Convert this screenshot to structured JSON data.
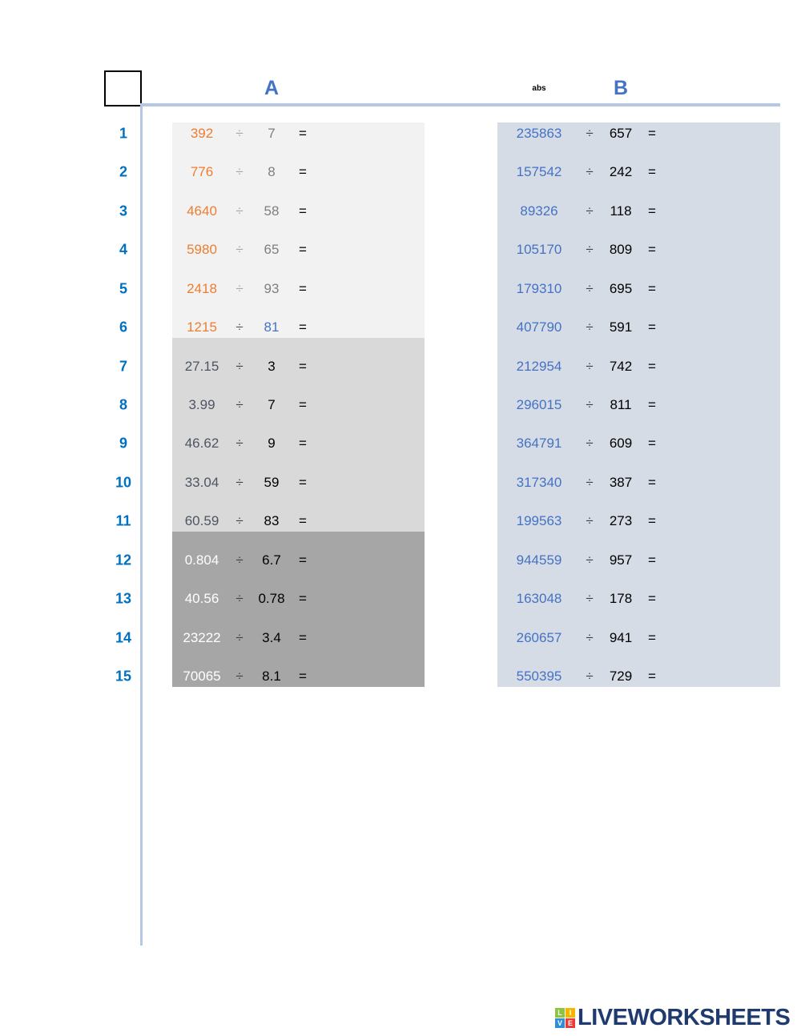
{
  "headers": {
    "a": "A",
    "b": "B",
    "abs": "abs"
  },
  "colors": {
    "axis": "#b4c7e7",
    "row_number": "#0070c0",
    "header": "#4472c4",
    "band_a_light": "#f2f2f2",
    "band_a_mid": "#d9d9d9",
    "band_a_dark": "#a6a6a6",
    "band_b": "#d6dce5"
  },
  "symbols": {
    "divide": "÷",
    "equals": "="
  },
  "rows": [
    {
      "n": "1",
      "a_dividend": "392",
      "a_divisor": "7",
      "a_dividend_color": "#ed7d31",
      "a_divisor_color": "#7f7f7f",
      "a_div_color": "#a6a6a6",
      "b_dividend": "235863",
      "b_divisor": "657"
    },
    {
      "n": "2",
      "a_dividend": "776",
      "a_divisor": "8",
      "a_dividend_color": "#ed7d31",
      "a_divisor_color": "#7f7f7f",
      "a_div_color": "#a6a6a6",
      "b_dividend": "157542",
      "b_divisor": "242"
    },
    {
      "n": "3",
      "a_dividend": "4640",
      "a_divisor": "58",
      "a_dividend_color": "#ed7d31",
      "a_divisor_color": "#7f7f7f",
      "a_div_color": "#a6a6a6",
      "b_dividend": "89326",
      "b_divisor": "118"
    },
    {
      "n": "4",
      "a_dividend": "5980",
      "a_divisor": "65",
      "a_dividend_color": "#ed7d31",
      "a_divisor_color": "#7f7f7f",
      "a_div_color": "#a6a6a6",
      "b_dividend": "105170",
      "b_divisor": "809"
    },
    {
      "n": "5",
      "a_dividend": "2418",
      "a_divisor": "93",
      "a_dividend_color": "#ed7d31",
      "a_divisor_color": "#7f7f7f",
      "a_div_color": "#a6a6a6",
      "b_dividend": "179310",
      "b_divisor": "695"
    },
    {
      "n": "6",
      "a_dividend": "1215",
      "a_divisor": "81",
      "a_dividend_color": "#ed7d31",
      "a_divisor_color": "#4472c4",
      "a_div_color": "#595959",
      "b_dividend": "407790",
      "b_divisor": "591"
    },
    {
      "n": "7",
      "a_dividend": "27.15",
      "a_divisor": "3",
      "a_dividend_color": "#4d5563",
      "a_divisor_color": "#000000",
      "a_div_color": "#404040",
      "b_dividend": "212954",
      "b_divisor": "742"
    },
    {
      "n": "8",
      "a_dividend": "3.99",
      "a_divisor": "7",
      "a_dividend_color": "#4d5563",
      "a_divisor_color": "#000000",
      "a_div_color": "#404040",
      "b_dividend": "296015",
      "b_divisor": "811"
    },
    {
      "n": "9",
      "a_dividend": "46.62",
      "a_divisor": "9",
      "a_dividend_color": "#4d5563",
      "a_divisor_color": "#000000",
      "a_div_color": "#404040",
      "b_dividend": "364791",
      "b_divisor": "609"
    },
    {
      "n": "10",
      "a_dividend": "33.04",
      "a_divisor": "59",
      "a_dividend_color": "#4d5563",
      "a_divisor_color": "#000000",
      "a_div_color": "#404040",
      "b_dividend": "317340",
      "b_divisor": "387"
    },
    {
      "n": "11",
      "a_dividend": "60.59",
      "a_divisor": "83",
      "a_dividend_color": "#4d5563",
      "a_divisor_color": "#000000",
      "a_div_color": "#404040",
      "b_dividend": "199563",
      "b_divisor": "273"
    },
    {
      "n": "12",
      "a_dividend": "0.804",
      "a_divisor": "6.7",
      "a_dividend_color": "#ffffff",
      "a_divisor_color": "#000000",
      "a_div_color": "#404040",
      "b_dividend": "944559",
      "b_divisor": "957"
    },
    {
      "n": "13",
      "a_dividend": "40.56",
      "a_divisor": "0.78",
      "a_dividend_color": "#ffffff",
      "a_divisor_color": "#000000",
      "a_div_color": "#404040",
      "b_dividend": "163048",
      "b_divisor": "178"
    },
    {
      "n": "14",
      "a_dividend": "23222",
      "a_divisor": "3.4",
      "a_dividend_color": "#ffffff",
      "a_divisor_color": "#000000",
      "a_div_color": "#404040",
      "b_dividend": "260657",
      "b_divisor": "941"
    },
    {
      "n": "15",
      "a_dividend": "70065",
      "a_divisor": "8.1",
      "a_dividend_color": "#ffffff",
      "a_divisor_color": "#000000",
      "a_div_color": "#404040",
      "b_dividend": "550395",
      "b_divisor": "729"
    }
  ],
  "logo": {
    "text": "LIVEWORKSHEETS",
    "tiles": [
      "L",
      "I",
      "V",
      "E"
    ]
  }
}
